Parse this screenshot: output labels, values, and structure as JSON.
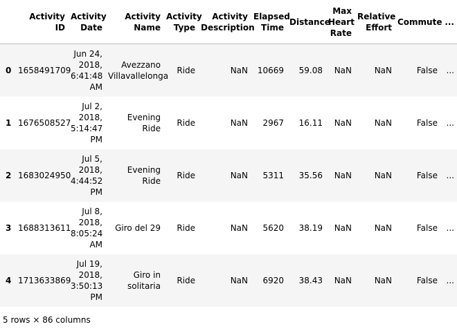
{
  "table": {
    "columns": [
      "",
      "Activity ID",
      "Activity Date",
      "Activity Name",
      "Activity Type",
      "Activity Description",
      "Elapsed Time",
      "Distance",
      "Max Heart Rate",
      "Relative Effort",
      "Commute",
      "..."
    ],
    "rows": [
      {
        "index": "0",
        "activity_id": "1658491709",
        "activity_date": "Jun 24, 2018, 6:41:48 AM",
        "activity_name": "Avezzano Villavallelonga",
        "activity_type": "Ride",
        "activity_description": "NaN",
        "elapsed_time": "10669",
        "distance": "59.08",
        "max_heart_rate": "NaN",
        "relative_effort": "NaN",
        "commute": "False",
        "more": "..."
      },
      {
        "index": "1",
        "activity_id": "1676508527",
        "activity_date": "Jul 2, 2018, 5:14:47 PM",
        "activity_name": "Evening Ride",
        "activity_type": "Ride",
        "activity_description": "NaN",
        "elapsed_time": "2967",
        "distance": "16.11",
        "max_heart_rate": "NaN",
        "relative_effort": "NaN",
        "commute": "False",
        "more": "..."
      },
      {
        "index": "2",
        "activity_id": "1683024950",
        "activity_date": "Jul 5, 2018, 4:44:52 PM",
        "activity_name": "Evening Ride",
        "activity_type": "Ride",
        "activity_description": "NaN",
        "elapsed_time": "5311",
        "distance": "35.56",
        "max_heart_rate": "NaN",
        "relative_effort": "NaN",
        "commute": "False",
        "more": "..."
      },
      {
        "index": "3",
        "activity_id": "1688313611",
        "activity_date": "Jul 8, 2018, 8:05:24 AM",
        "activity_name": "Giro del 29",
        "activity_type": "Ride",
        "activity_description": "NaN",
        "elapsed_time": "5620",
        "distance": "38.19",
        "max_heart_rate": "NaN",
        "relative_effort": "NaN",
        "commute": "False",
        "more": "..."
      },
      {
        "index": "4",
        "activity_id": "1713633869",
        "activity_date": "Jul 19, 2018, 3:50:13 PM",
        "activity_name": "Giro in solitaria",
        "activity_type": "Ride",
        "activity_description": "NaN",
        "elapsed_time": "6920",
        "distance": "38.43",
        "max_heart_rate": "NaN",
        "relative_effort": "NaN",
        "commute": "False",
        "more": "..."
      }
    ]
  },
  "footer": {
    "shape_text": "5 rows × 86 columns"
  }
}
